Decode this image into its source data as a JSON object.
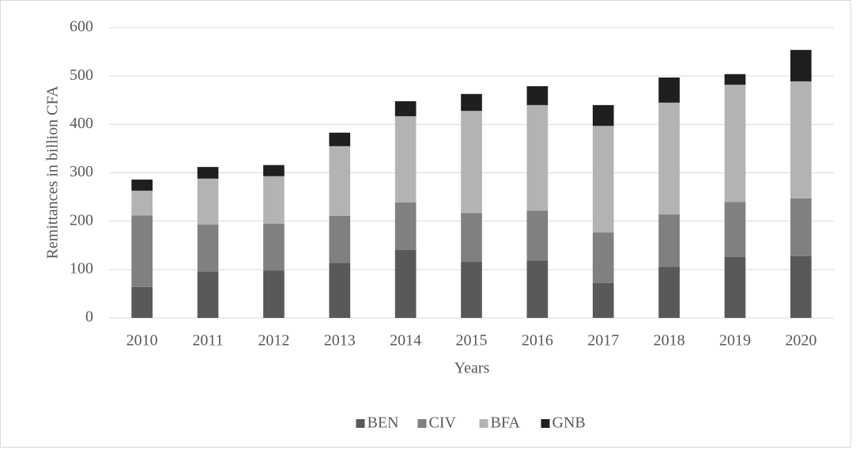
{
  "chart_data": {
    "type": "stacked_bar",
    "y_label": "Remittances in billion CFA",
    "x_label": "Years",
    "categories": [
      "2010",
      "2011",
      "2012",
      "2013",
      "2014",
      "2015",
      "2016",
      "2017",
      "2018",
      "2019",
      "2020"
    ],
    "series": [
      {
        "name": "BEN",
        "color": "#595959",
        "values": [
          64,
          96,
          98,
          114,
          141,
          116,
          119,
          72,
          106,
          126,
          128
        ]
      },
      {
        "name": "CIV",
        "color": "#808080",
        "values": [
          148,
          97,
          97,
          97,
          98,
          101,
          103,
          105,
          108,
          114,
          119
        ]
      },
      {
        "name": "BFA",
        "color": "#b3b3b3",
        "values": [
          51,
          95,
          98,
          144,
          178,
          211,
          218,
          220,
          231,
          242,
          242
        ]
      },
      {
        "name": "GNB",
        "color": "#1f1f1f",
        "values": [
          23,
          24,
          23,
          28,
          31,
          35,
          39,
          43,
          52,
          22,
          65
        ]
      }
    ],
    "ylim": [
      0,
      600
    ],
    "yticks": [
      0,
      100,
      200,
      300,
      400,
      500,
      600
    ],
    "grid": true,
    "legend": "bottom"
  }
}
